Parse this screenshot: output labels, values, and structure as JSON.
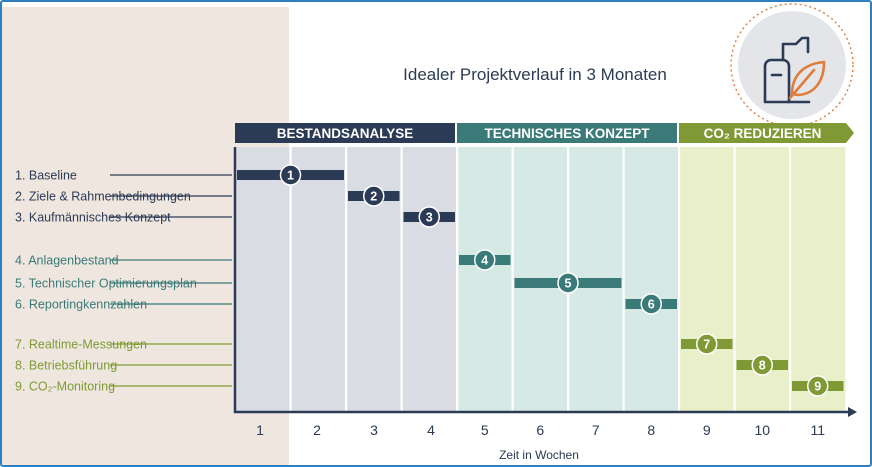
{
  "title": "Idealer Projektverlauf in 3 Monaten",
  "phases": [
    {
      "label": "BESTANDSANALYSE",
      "color": "#2b3a55"
    },
    {
      "label": "TECHNISCHES KONZEPT",
      "color": "#3a7a78"
    },
    {
      "label": "CO₂ REDUZIEREN",
      "color": "#7f9a35"
    }
  ],
  "columns": [
    "1",
    "2",
    "3",
    "4",
    "5",
    "6",
    "7",
    "8",
    "9",
    "10",
    "11"
  ],
  "xlabel": "Zeit in Wochen",
  "tasks": [
    {
      "label": "1. Baseline",
      "marker": "1",
      "start_week": 1,
      "end_week": 2,
      "phase": 0
    },
    {
      "label": "2. Ziele & Rahmenbedingungen",
      "marker": "2",
      "start_week": 3,
      "end_week": 3,
      "phase": 0
    },
    {
      "label": "3. Kaufmännisches Konzept",
      "marker": "3",
      "start_week": 4,
      "end_week": 4,
      "phase": 0
    },
    {
      "label": "4. Anlagenbestand",
      "marker": "4",
      "start_week": 5,
      "end_week": 5,
      "phase": 1
    },
    {
      "label": "5. Technischer Optimierungsplan",
      "marker": "5",
      "start_week": 6,
      "end_week": 7,
      "phase": 1
    },
    {
      "label": "6. Reportingkennzahlen",
      "marker": "6",
      "start_week": 8,
      "end_week": 8,
      "phase": 1
    },
    {
      "label": "7. Realtime-Messungen",
      "marker": "7",
      "start_week": 9,
      "end_week": 9,
      "phase": 2
    },
    {
      "label": "8. Betriebsführung",
      "marker": "8",
      "start_week": 10,
      "end_week": 10,
      "phase": 2
    },
    {
      "label": "9. CO₂-Monitoring",
      "marker": "9",
      "start_week": 11,
      "end_week": 11,
      "phase": 2
    }
  ],
  "colors": {
    "beige": "#efe7df",
    "phase_bg": [
      "#d9dce2",
      "#d6e9e4",
      "#e9efc9"
    ],
    "orange": "#e07b3a",
    "axis": "#2b3a55"
  },
  "icons": [
    "factory-leaf-icon"
  ]
}
